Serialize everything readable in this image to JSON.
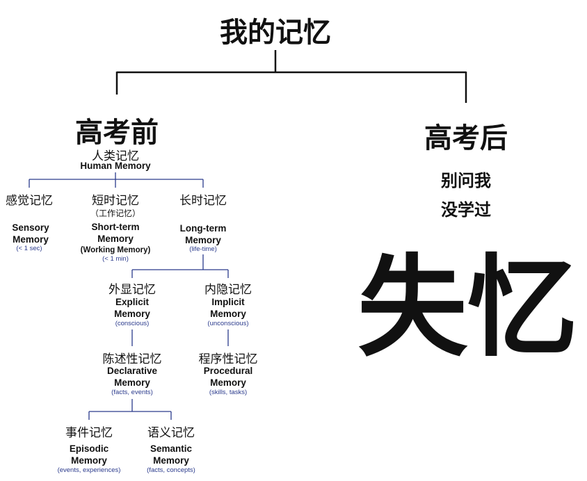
{
  "title": "我的记忆",
  "left_branch": {
    "heading": "高考前",
    "root_zh": "人类记忆",
    "root_en": "Human Memory",
    "sensory": {
      "zh": "感觉记忆",
      "en_line1": "Sensory",
      "en_line2": "Memory",
      "note": "(< 1 sec)"
    },
    "short_term": {
      "zh": "短时记忆",
      "zh_note": "（工作记忆）",
      "en_line1": "Short-term",
      "en_line2": "Memory",
      "en_line3": "(Working Memory)",
      "note": "(< 1 min)"
    },
    "long_term": {
      "zh": "长时记忆",
      "en_line1": "Long-term",
      "en_line2": "Memory",
      "note": "(life-time)"
    },
    "explicit": {
      "zh": "外显记忆",
      "en_line1": "Explicit",
      "en_line2": "Memory",
      "note": "(conscious)"
    },
    "implicit": {
      "zh": "内隐记忆",
      "en_line1": "Implicit",
      "en_line2": "Memory",
      "note": "(unconscious)"
    },
    "declarative": {
      "zh": "陈述性记忆",
      "en_line1": "Declarative",
      "en_line2": "Memory",
      "note": "(facts, events)"
    },
    "procedural": {
      "zh": "程序性记忆",
      "en_line1": "Procedural",
      "en_line2": "Memory",
      "note": "(skills, tasks)"
    },
    "episodic": {
      "zh": "事件记忆",
      "en_line1": "Episodic",
      "en_line2": "Memory",
      "note": "(events, experiences)"
    },
    "semantic": {
      "zh": "语义记忆",
      "en_line1": "Semantic",
      "en_line2": "Memory",
      "note": "(facts, concepts)"
    }
  },
  "right_branch": {
    "heading": "高考后",
    "answer_line1": "别问我",
    "answer_line2": "没学过",
    "verdict": "失忆"
  }
}
